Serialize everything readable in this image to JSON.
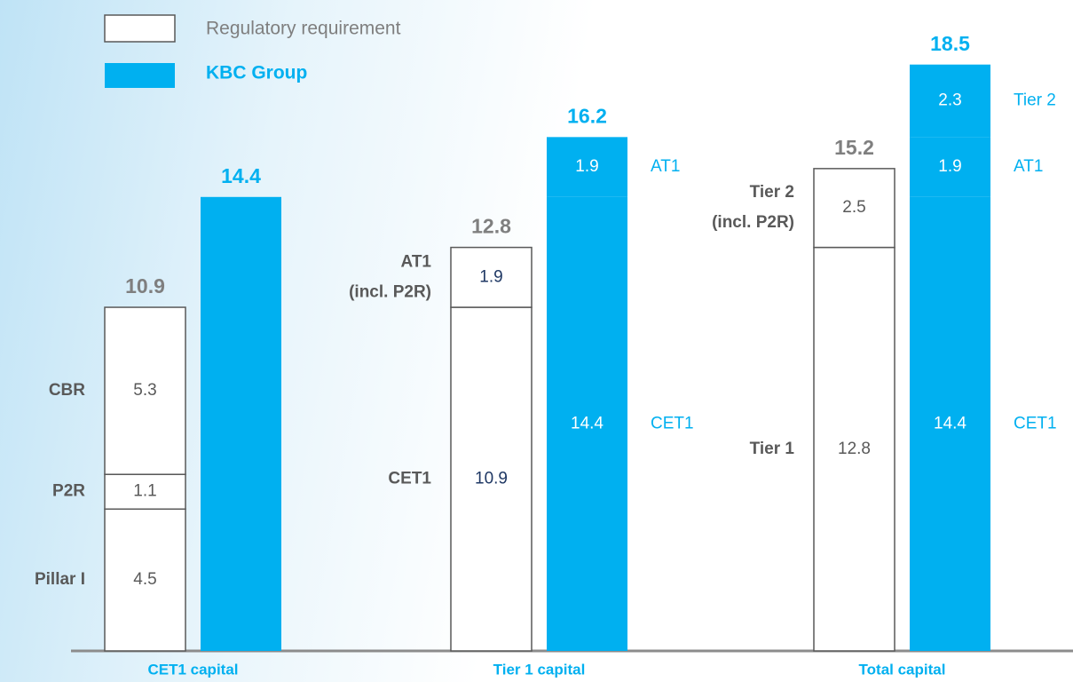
{
  "chart_data": {
    "type": "grouped-stacked-bar",
    "ylim": [
      0,
      20
    ],
    "legend": [
      {
        "name": "Regulatory requirement",
        "color": "#ffffff"
      },
      {
        "name": "KBC Group",
        "color": "#00b0f0"
      }
    ],
    "groups": [
      {
        "category": "CET1 capital",
        "bars": [
          {
            "series": 0,
            "total": 10.9,
            "value_color": "#595959",
            "segments": [
              {
                "value": 4.5,
                "label": [
                  "Pillar I"
                ]
              },
              {
                "value": 1.1,
                "label": [
                  "P2R"
                ]
              },
              {
                "value": 5.3,
                "label": [
                  "CBR"
                ]
              }
            ]
          },
          {
            "series": 1,
            "total": 14.4,
            "value_color": "#ffffff",
            "segments": []
          }
        ]
      },
      {
        "category": "Tier 1 capital",
        "bars": [
          {
            "series": 0,
            "total": 12.8,
            "value_color": "#1f3864",
            "segments": [
              {
                "value": 10.9,
                "label": [
                  "CET1"
                ]
              },
              {
                "value": 1.9,
                "label": [
                  "AT1",
                  "(incl. P2R)"
                ]
              }
            ]
          },
          {
            "series": 1,
            "total": 16.2,
            "value_color": "#ffffff",
            "segments": [
              {
                "value": 14.4,
                "label": [
                  "CET1"
                ]
              },
              {
                "value": 1.9,
                "label": [
                  "AT1"
                ]
              }
            ]
          }
        ]
      },
      {
        "category": "Total capital",
        "bars": [
          {
            "series": 0,
            "total": 15.2,
            "value_color": "#595959",
            "segments": [
              {
                "value": 12.8,
                "label": [
                  "Tier 1"
                ]
              },
              {
                "value": 2.5,
                "label": [
                  "Tier 2",
                  "(incl. P2R)"
                ]
              }
            ]
          },
          {
            "series": 1,
            "total": 18.5,
            "value_color": "#ffffff",
            "segments": [
              {
                "value": 14.4,
                "label": [
                  "CET1"
                ]
              },
              {
                "value": 1.9,
                "label": [
                  "AT1"
                ]
              },
              {
                "value": 2.3,
                "label": [
                  "Tier 2"
                ]
              }
            ]
          }
        ]
      }
    ]
  }
}
